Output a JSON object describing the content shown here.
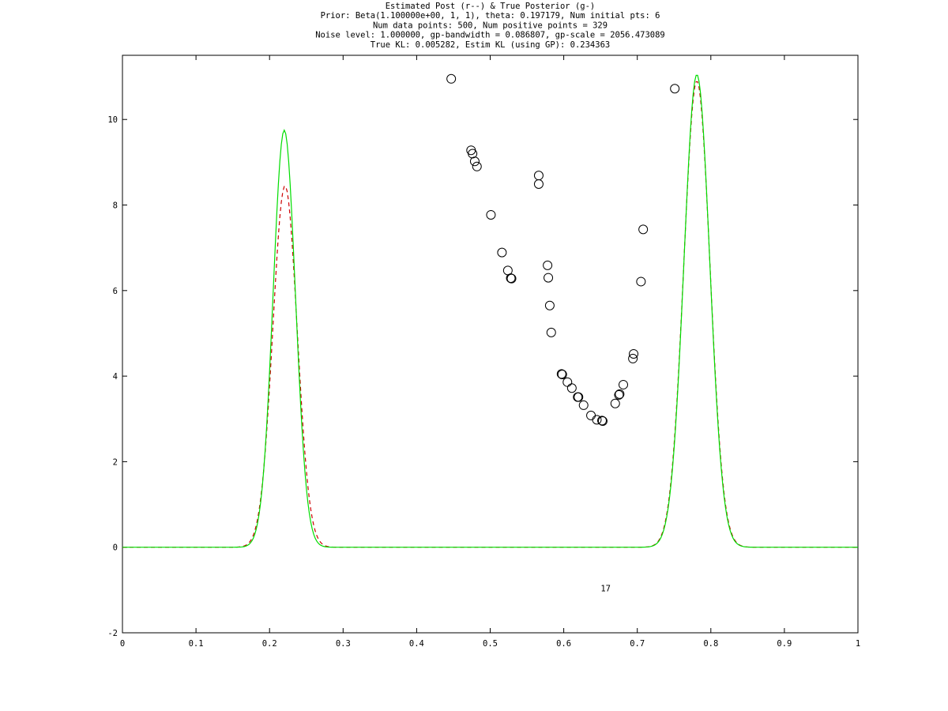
{
  "chart_data": {
    "type": "line",
    "title": [
      "Estimated Post (r--) & True Posterior (g-)",
      "Prior: Beta(1.100000e+00, 1, 1), theta: 0.197179, Num initial pts: 6",
      "Num data points: 500, Num positive points = 329",
      "Noise level: 1.000000, gp-bandwidth  = 0.086807, gp-scale = 2056.473089",
      "True KL: 0.005282, Estim KL (using GP): 0.234363"
    ],
    "xlabel": "",
    "ylabel": "",
    "xlim": [
      0,
      1
    ],
    "ylim": [
      -2,
      11.5
    ],
    "xticks": [
      0,
      0.1,
      0.2,
      0.3,
      0.4,
      0.5,
      0.6,
      0.7,
      0.8,
      0.9,
      1
    ],
    "xtick_labels": [
      "0",
      "0.1",
      "0.2",
      "0.3",
      "0.4",
      "0.5",
      "0.6",
      "0.7",
      "0.8",
      "0.9",
      "1"
    ],
    "yticks": [
      -2,
      0,
      2,
      4,
      6,
      8,
      10
    ],
    "ytick_labels": [
      "-2",
      "0",
      "2",
      "4",
      "6",
      "8",
      "10"
    ],
    "grid": false,
    "series": [
      {
        "style": "dashed",
        "color": "#cc0000",
        "peaks": [
          {
            "center": 0.221,
            "height": 8.45,
            "width": 0.0165
          },
          {
            "center": 0.781,
            "height": 10.9,
            "width": 0.0178
          }
        ],
        "x_start": 0,
        "x_end": 1
      },
      {
        "style": "solid",
        "color": "#00dd00",
        "peaks": [
          {
            "center": 0.22,
            "height": 9.75,
            "width": 0.0152
          },
          {
            "center": 0.781,
            "height": 11.05,
            "width": 0.0175
          }
        ],
        "x_start": 0,
        "x_end": 1
      }
    ],
    "scatter": {
      "marker": "circle",
      "color": "#000000",
      "points": [
        [
          0.447,
          10.95
        ],
        [
          0.474,
          9.28
        ],
        [
          0.476,
          9.2
        ],
        [
          0.479,
          9.02
        ],
        [
          0.482,
          8.9
        ],
        [
          0.501,
          7.77
        ],
        [
          0.516,
          6.89
        ],
        [
          0.524,
          6.47
        ],
        [
          0.528,
          6.29
        ],
        [
          0.529,
          6.28
        ],
        [
          0.566,
          8.69
        ],
        [
          0.566,
          8.49
        ],
        [
          0.578,
          6.59
        ],
        [
          0.579,
          6.3
        ],
        [
          0.581,
          5.65
        ],
        [
          0.583,
          5.02
        ],
        [
          0.597,
          4.05
        ],
        [
          0.598,
          4.04
        ],
        [
          0.605,
          3.86
        ],
        [
          0.611,
          3.72
        ],
        [
          0.619,
          3.51
        ],
        [
          0.62,
          3.51
        ],
        [
          0.627,
          3.32
        ],
        [
          0.637,
          3.08
        ],
        [
          0.645,
          2.98
        ],
        [
          0.652,
          2.96
        ],
        [
          0.653,
          2.95
        ],
        [
          0.67,
          3.36
        ],
        [
          0.675,
          3.56
        ],
        [
          0.676,
          3.58
        ],
        [
          0.681,
          3.8
        ],
        [
          0.694,
          4.41
        ],
        [
          0.695,
          4.52
        ],
        [
          0.705,
          6.21
        ],
        [
          0.708,
          7.43
        ],
        [
          0.751,
          10.72
        ]
      ]
    },
    "annotations": [
      {
        "text": "17",
        "x": 0.657,
        "y": -1.03
      }
    ]
  }
}
